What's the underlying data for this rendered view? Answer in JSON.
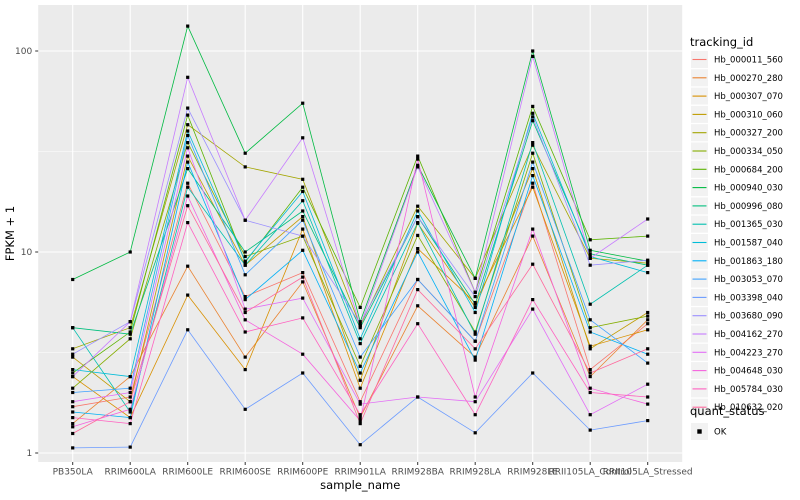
{
  "chart_data": {
    "type": "line",
    "title": "",
    "xlabel": "sample_name",
    "ylabel": "FPKM + 1",
    "y_scale": "log10",
    "ylim": [
      0.9,
      170
    ],
    "yticks": [
      1,
      10,
      100
    ],
    "ytick_labels": [
      "1",
      "10",
      "100"
    ],
    "minor_yticks": [
      3.1623,
      31.6228
    ],
    "grid": true,
    "legend_position": "right",
    "panel_bg": "#EBEBEB",
    "grid_color": "#FFFFFF",
    "key_bg": "#F2F2F2",
    "tick_text_color": "#4D4D4D",
    "axis_title_color": "#000000",
    "point_color": "#000000",
    "categories": [
      "PB350LA",
      "RRIM600LA",
      "RRIM600LE",
      "RRIM600SE",
      "RRIM600PE",
      "RRIM901LA",
      "RRIM928BA",
      "RRIM928LA",
      "RRIM928LE",
      "RRII105LA_Control",
      "RRII105LA_Stressed"
    ],
    "series": [
      {
        "name": "Hb_000011_560",
        "color": "#F8766D",
        "values": [
          1.7,
          1.9,
          22,
          6.0,
          7.9,
          1.8,
          7.3,
          3.6,
          22,
          2.6,
          4.4
        ]
      },
      {
        "name": "Hb_000270_280",
        "color": "#EA8331",
        "values": [
          1.4,
          2.4,
          8.5,
          3.0,
          7.1,
          1.5,
          5.4,
          3.0,
          12,
          2.4,
          4.6
        ]
      },
      {
        "name": "Hb_000307_070",
        "color": "#D89000",
        "values": [
          2.4,
          1.5,
          6.1,
          2.6,
          13,
          2.1,
          10.4,
          5.6,
          21,
          3.4,
          4.1
        ]
      },
      {
        "name": "Hb_000310_060",
        "color": "#C09B00",
        "values": [
          3.0,
          1.8,
          30,
          8.6,
          15,
          2.3,
          13.9,
          5.3,
          26,
          3.3,
          5.0
        ]
      },
      {
        "name": "Hb_000327_200",
        "color": "#A3A500",
        "values": [
          3.3,
          4.2,
          43,
          26.5,
          23,
          4.3,
          16.9,
          7.4,
          34,
          9.3,
          8.8
        ]
      },
      {
        "name": "Hb_000334_050",
        "color": "#85AD00",
        "values": [
          2.1,
          3.7,
          35,
          9.5,
          12,
          2.7,
          12.1,
          4.0,
          31,
          4.2,
          4.8
        ]
      },
      {
        "name": "Hb_000684_200",
        "color": "#5BB300",
        "values": [
          2.5,
          4.0,
          48,
          8.9,
          21,
          5.3,
          30,
          6.3,
          53,
          11.5,
          12.0
        ]
      },
      {
        "name": "Hb_000940_030",
        "color": "#00BA42",
        "values": [
          7.3,
          10,
          133,
          31,
          55,
          4.5,
          27,
          7.4,
          100,
          10.2,
          9.0
        ]
      },
      {
        "name": "Hb_000996_080",
        "color": "#00BF7D",
        "values": [
          4.2,
          3.9,
          26,
          10,
          16,
          4.2,
          15,
          5.5,
          45,
          9.8,
          8.6
        ]
      },
      {
        "name": "Hb_001365_030",
        "color": "#00C0AF",
        "values": [
          4.2,
          1.6,
          21,
          8.6,
          18,
          3.5,
          14,
          3.9,
          35,
          5.5,
          8.6
        ]
      },
      {
        "name": "Hb_001587_040",
        "color": "#00BCD8",
        "values": [
          2.6,
          2.4,
          40,
          9.0,
          20,
          3.7,
          16,
          5.0,
          49,
          9.5,
          7.9
        ]
      },
      {
        "name": "Hb_001863_180",
        "color": "#00B0F6",
        "values": [
          1.6,
          1.5,
          28,
          5.8,
          10.2,
          2.5,
          10,
          2.9,
          24,
          4.0,
          3.1
        ]
      },
      {
        "name": "Hb_003053_070",
        "color": "#3FA1FF",
        "values": [
          2.0,
          2.1,
          38,
          7.7,
          14.4,
          3.0,
          7.3,
          3.6,
          28,
          4.6,
          2.8
        ]
      },
      {
        "name": "Hb_003398_040",
        "color": "#6B9BFF",
        "values": [
          1.06,
          1.07,
          4.1,
          1.65,
          2.5,
          1.1,
          1.9,
          1.26,
          2.5,
          1.3,
          1.45
        ]
      },
      {
        "name": "Hb_003680_090",
        "color": "#9B8FFF",
        "values": [
          3.1,
          4.5,
          52,
          14.4,
          12,
          4.4,
          15,
          6.0,
          47,
          8.6,
          9.1
        ]
      },
      {
        "name": "Hb_004162_270",
        "color": "#C77CFF",
        "values": [
          2.4,
          4.5,
          74,
          14.4,
          37,
          4.3,
          26.5,
          6.3,
          94,
          9.3,
          14.6
        ]
      },
      {
        "name": "Hb_004223_270",
        "color": "#E36EF6",
        "values": [
          1.8,
          2.0,
          33,
          5.2,
          5.9,
          1.75,
          1.9,
          1.8,
          5.2,
          1.55,
          2.2
        ]
      },
      {
        "name": "Hb_004648_030",
        "color": "#F562DE",
        "values": [
          1.35,
          1.65,
          19,
          4.6,
          3.1,
          1.45,
          29,
          1.9,
          13,
          2.1,
          1.75
        ]
      },
      {
        "name": "Hb_005784_030",
        "color": "#FF61C0",
        "values": [
          1.5,
          1.4,
          14,
          4.0,
          4.7,
          1.55,
          4.4,
          1.55,
          5.8,
          2.0,
          1.9
        ]
      },
      {
        "name": "Hb_010632_020",
        "color": "#FF689C",
        "values": [
          1.25,
          1.8,
          17,
          5.0,
          7.5,
          1.4,
          6.5,
          3.3,
          8.7,
          2.5,
          3.3
        ]
      }
    ],
    "legends": {
      "tracking": {
        "title": "tracking_id"
      },
      "quant": {
        "title": "quant_status",
        "items": [
          {
            "label": "OK",
            "marker": "square",
            "color": "#000000"
          }
        ]
      }
    }
  }
}
